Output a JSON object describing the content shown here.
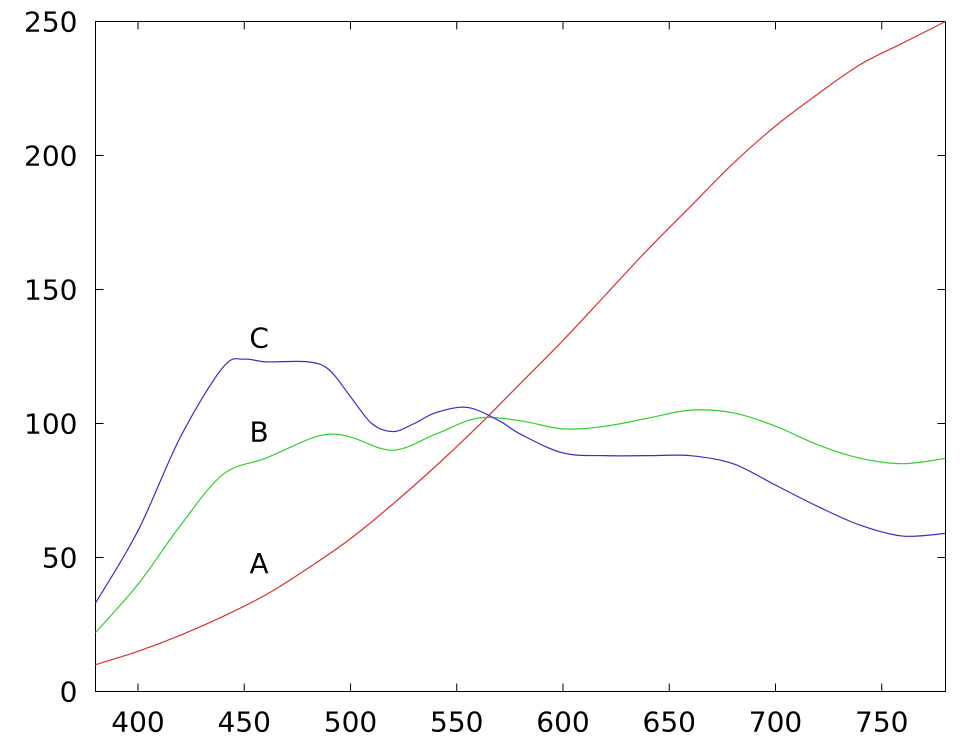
{
  "chart_data": {
    "type": "line",
    "title": "",
    "xlabel": "",
    "ylabel": "",
    "xlim": [
      380,
      780
    ],
    "ylim": [
      0,
      250
    ],
    "xticks": [
      400,
      450,
      500,
      550,
      600,
      650,
      700,
      750
    ],
    "yticks": [
      0,
      50,
      100,
      150,
      200,
      250
    ],
    "grid": false,
    "series": [
      {
        "name": "A",
        "color": "#e03030",
        "label_at": [
          457,
          48
        ],
        "x": [
          380,
          400,
          420,
          440,
          460,
          480,
          500,
          520,
          540,
          560,
          580,
          600,
          620,
          640,
          660,
          680,
          700,
          720,
          740,
          760,
          780
        ],
        "y": [
          10,
          15,
          21,
          28,
          36,
          46,
          57,
          70,
          84,
          99,
          115,
          131,
          148,
          165,
          181,
          197,
          211,
          223,
          234,
          242,
          250
        ]
      },
      {
        "name": "B",
        "color": "#30d030",
        "label_at": [
          457,
          97
        ],
        "x": [
          380,
          400,
          420,
          440,
          460,
          480,
          490,
          500,
          520,
          540,
          560,
          580,
          600,
          620,
          640,
          660,
          680,
          700,
          720,
          740,
          760,
          780
        ],
        "y": [
          22,
          40,
          62,
          81,
          87,
          94,
          96,
          95,
          90,
          96,
          102,
          101,
          98,
          99,
          102,
          105,
          104,
          99,
          92,
          87,
          85,
          87
        ]
      },
      {
        "name": "C",
        "color": "#3030d0",
        "label_at": [
          457,
          132
        ],
        "x": [
          380,
          400,
          420,
          440,
          450,
          460,
          480,
          490,
          500,
          510,
          520,
          530,
          540,
          555,
          570,
          580,
          600,
          620,
          640,
          660,
          680,
          700,
          720,
          740,
          760,
          780
        ],
        "y": [
          33,
          60,
          95,
          121,
          124,
          123,
          123,
          120,
          110,
          100,
          97,
          100,
          104,
          106,
          101,
          96,
          89,
          88,
          88,
          88,
          85,
          77,
          69,
          62,
          58,
          59
        ]
      }
    ]
  }
}
